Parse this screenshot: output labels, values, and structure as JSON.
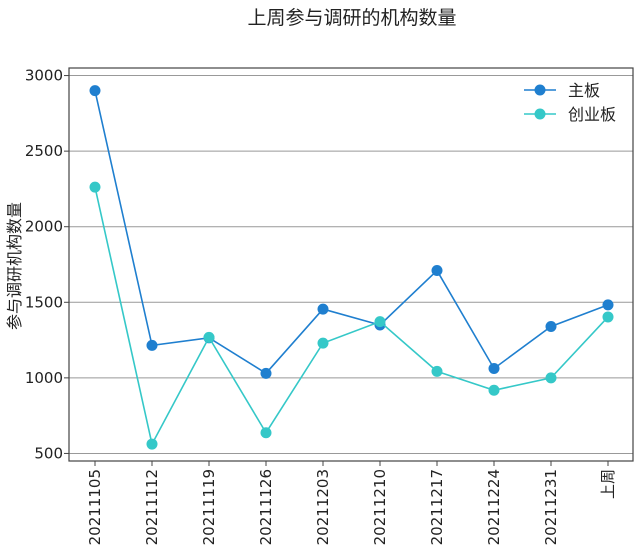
{
  "chart_data": {
    "type": "line",
    "title": "上周参与调研的机构数量",
    "xlabel": "",
    "ylabel": "参与调研机构数量",
    "categories": [
      "20211105",
      "20211112",
      "20211119",
      "20211126",
      "20211203",
      "20211210",
      "20211217",
      "20211224",
      "20211231",
      "上周"
    ],
    "series": [
      {
        "name": "主板",
        "color": "#1f7fcf",
        "values": [
          2900,
          1215,
          1265,
          1030,
          1455,
          1350,
          1710,
          1062,
          1340,
          1483
        ]
      },
      {
        "name": "创业板",
        "color": "#35c8c8",
        "values": [
          2262,
          562,
          1268,
          637,
          1230,
          1372,
          1043,
          918,
          1000,
          1403
        ]
      }
    ],
    "ylim": [
      450,
      3050
    ],
    "yticks": [
      500,
      1000,
      1500,
      2000,
      2500,
      3000
    ],
    "grid": "horizontal",
    "legend_position": "top-right"
  }
}
